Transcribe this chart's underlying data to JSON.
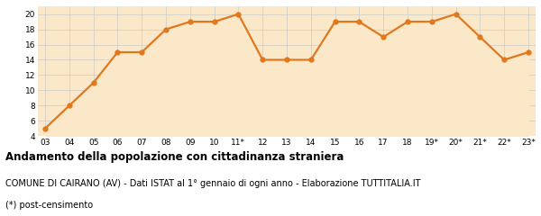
{
  "x_labels": [
    "03",
    "04",
    "05",
    "06",
    "07",
    "08",
    "09",
    "10",
    "11*",
    "12",
    "13",
    "14",
    "15",
    "16",
    "17",
    "18",
    "19*",
    "20*",
    "21*",
    "22*",
    "23*"
  ],
  "y_values": [
    5,
    8,
    11,
    15,
    15,
    18,
    19,
    19,
    20,
    14,
    14,
    14,
    19,
    19,
    17,
    19,
    19,
    20,
    17,
    14,
    15
  ],
  "line_color": "#E07820",
  "fill_color": "#FAE8C8",
  "marker": "o",
  "marker_size": 3.5,
  "line_width": 1.6,
  "ylim": [
    4,
    21
  ],
  "yticks": [
    4,
    6,
    8,
    10,
    12,
    14,
    16,
    18,
    20
  ],
  "grid_color": "#cccccc",
  "background_color": "#FAE8C8",
  "title": "Andamento della popolazione con cittadinanza straniera",
  "subtitle": "COMUNE DI CAIRANO (AV) - Dati ISTAT al 1° gennaio di ogni anno - Elaborazione TUTTITALIA.IT",
  "footnote": "(*) post-censimento",
  "title_fontsize": 8.5,
  "subtitle_fontsize": 7,
  "footnote_fontsize": 7,
  "tick_fontsize": 6.5,
  "ytick_fontsize": 6.5
}
